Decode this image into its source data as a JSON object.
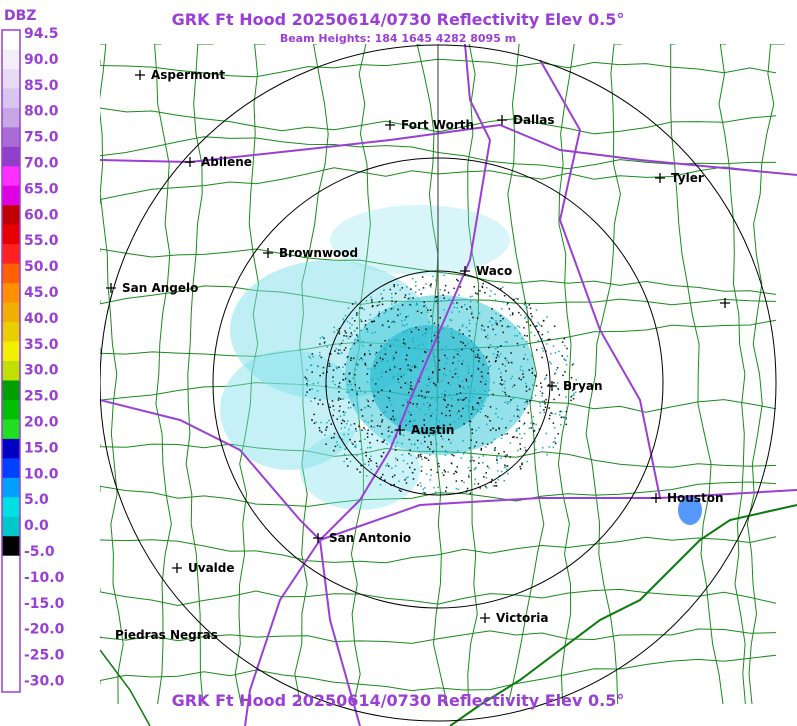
{
  "header": {
    "title": "GRK Ft Hood 20250614/0730 Reflectivity Elev 0.5°",
    "subtitle": "Beam Heights: 184 1645 4282 8095 m"
  },
  "legend": {
    "unit": "DBZ",
    "labels": [
      "94.5",
      "90.0",
      "85.0",
      "80.0",
      "75.0",
      "70.0",
      "65.0",
      "60.0",
      "55.0",
      "50.0",
      "45.0",
      "40.0",
      "35.0",
      "30.0",
      "25.0",
      "20.0",
      "15.0",
      "10.0",
      "5.0",
      "0.0",
      "-5.0",
      "-10.0",
      "-15.0",
      "-20.0",
      "-25.0",
      "-30.0"
    ]
  },
  "cities": [
    "Aspermont",
    "Fort Worth",
    "Dallas",
    "Abilene",
    "Tyler",
    "Brownwood",
    "Waco",
    "San Angelo",
    "Bryan",
    "Austin",
    "Houston",
    "San Antonio",
    "Uvalde",
    "Victoria",
    "Piedras Negras"
  ],
  "footer": {
    "title": "GRK Ft Hood 20250614/0730 Reflectivity Elev 0.5°"
  }
}
